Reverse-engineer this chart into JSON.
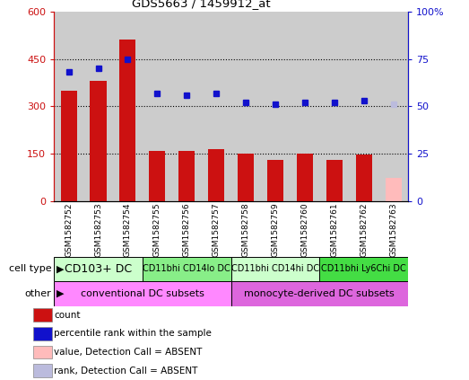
{
  "title": "GDS5663 / 1459912_at",
  "samples": [
    "GSM1582752",
    "GSM1582753",
    "GSM1582754",
    "GSM1582755",
    "GSM1582756",
    "GSM1582757",
    "GSM1582758",
    "GSM1582759",
    "GSM1582760",
    "GSM1582761",
    "GSM1582762",
    "GSM1582763"
  ],
  "counts": [
    350,
    380,
    510,
    160,
    160,
    165,
    150,
    130,
    150,
    130,
    148,
    null
  ],
  "ranks": [
    68,
    70,
    75,
    57,
    56,
    57,
    52,
    51,
    52,
    52,
    53,
    51
  ],
  "absent_count_val": 75,
  "absent_rank_val": 51,
  "absent_count_idx": 11,
  "absent_rank_idx": 11,
  "left_ylim": [
    0,
    600
  ],
  "right_ylim": [
    0,
    100
  ],
  "left_yticks": [
    0,
    150,
    300,
    450,
    600
  ],
  "right_yticks": [
    0,
    25,
    50,
    75,
    100
  ],
  "left_ytick_labels": [
    "0",
    "150",
    "300",
    "450",
    "600"
  ],
  "right_ytick_labels": [
    "0",
    "25",
    "50",
    "75",
    "100%"
  ],
  "bar_color": "#cc1111",
  "rank_color": "#1111cc",
  "absent_bar_color": "#ffbbbb",
  "absent_rank_color": "#bbbbdd",
  "bg_color": "#cccccc",
  "cell_type_groups": [
    {
      "label": "CD103+ DC",
      "start": 0,
      "end": 2,
      "color": "#ccffcc",
      "fontsize": 9
    },
    {
      "label": "CD11bhi CD14lo DC",
      "start": 3,
      "end": 5,
      "color": "#88ee88",
      "fontsize": 7
    },
    {
      "label": "CD11bhi CD14hi DC",
      "start": 6,
      "end": 8,
      "color": "#ccffcc",
      "fontsize": 7
    },
    {
      "label": "CD11bhi Ly6Chi DC",
      "start": 9,
      "end": 11,
      "color": "#44dd44",
      "fontsize": 7
    }
  ],
  "other_groups": [
    {
      "label": "conventional DC subsets",
      "start": 0,
      "end": 5,
      "color": "#ff88ff"
    },
    {
      "label": "monocyte-derived DC subsets",
      "start": 6,
      "end": 11,
      "color": "#dd66dd"
    }
  ],
  "legend_items": [
    {
      "label": "count",
      "color": "#cc1111"
    },
    {
      "label": "percentile rank within the sample",
      "color": "#1111cc"
    },
    {
      "label": "value, Detection Call = ABSENT",
      "color": "#ffbbbb"
    },
    {
      "label": "rank, Detection Call = ABSENT",
      "color": "#bbbbdd"
    }
  ],
  "cell_type_label": "cell type",
  "other_label": "other",
  "hline_color": "black",
  "hline_vals": [
    150,
    300,
    450
  ]
}
